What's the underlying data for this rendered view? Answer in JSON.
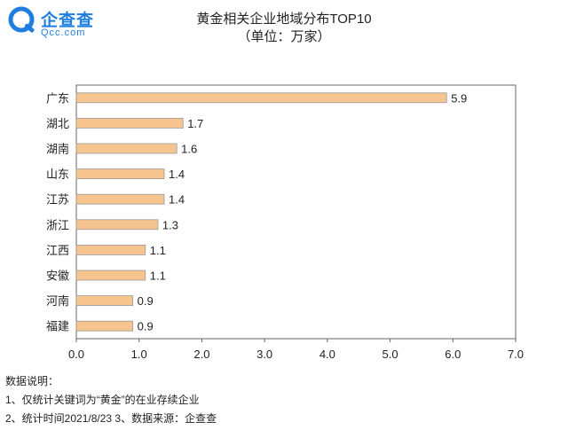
{
  "brand": {
    "name": "企查查",
    "domain": "Qcc.com",
    "color": "#1f7ee0"
  },
  "chart_data": {
    "type": "bar",
    "orientation": "horizontal",
    "title": "黄金相关企业地域分布TOP10",
    "subtitle": "（单位：万家）",
    "categories": [
      "广东",
      "湖北",
      "湖南",
      "山东",
      "江苏",
      "浙江",
      "江西",
      "安徽",
      "河南",
      "福建"
    ],
    "values": [
      5.9,
      1.7,
      1.6,
      1.4,
      1.4,
      1.3,
      1.1,
      1.1,
      0.9,
      0.9
    ],
    "data_labels": [
      "5.9",
      "1.7",
      "1.6",
      "1.4",
      "1.4",
      "1.3",
      "1.1",
      "1.1",
      "0.9",
      "0.9"
    ],
    "xlim": [
      0,
      7
    ],
    "x_ticks": [
      "0.0",
      "1.0",
      "2.0",
      "3.0",
      "4.0",
      "5.0",
      "6.0",
      "7.0"
    ],
    "grid": false,
    "bar_color": "#f6c48e",
    "bar_edge_color": "#9a9a9a"
  },
  "notes": {
    "heading": "数据说明：",
    "line1": "1、仅统计关键词为“黄金”的在业存续企业",
    "line2": "2、统计时间2021/8/23   3、数据来源：企查查"
  }
}
